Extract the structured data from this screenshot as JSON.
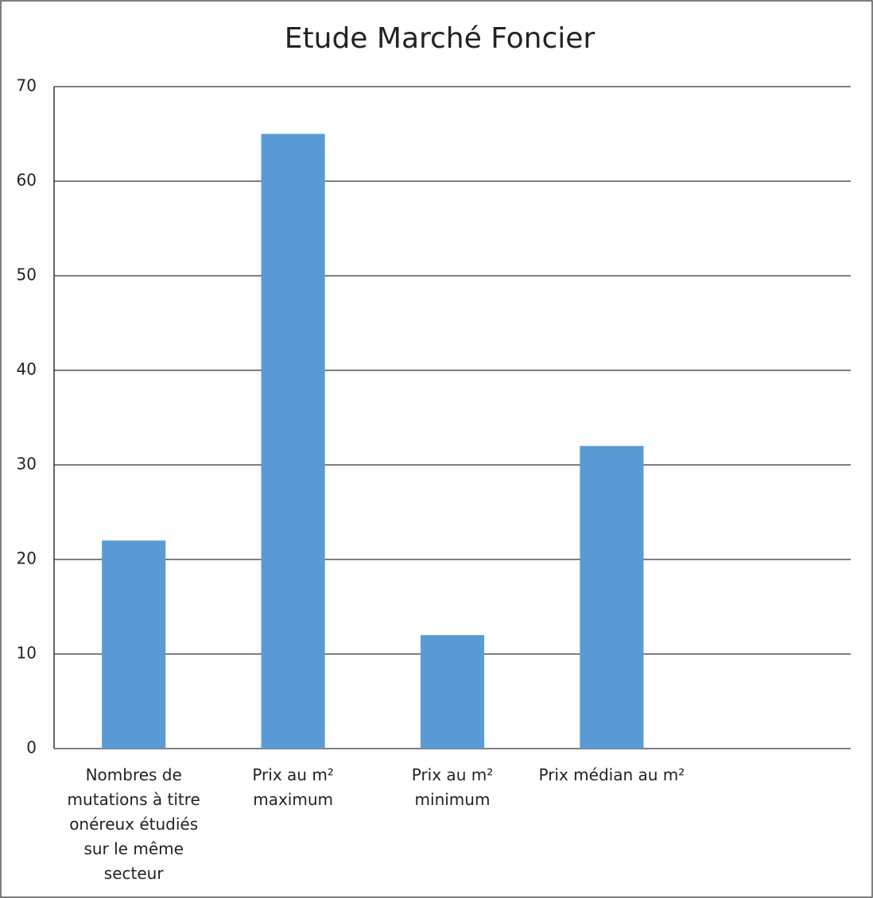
{
  "chart_data": {
    "type": "bar",
    "title": "Etude Marché Foncier",
    "categories": [
      "Nombres de mutations à titre onéreux étudiés sur le même secteur",
      "Prix au m² maximum",
      "Prix au m² minimum",
      "Prix médian au m²",
      null
    ],
    "values": [
      22,
      65,
      12,
      32,
      null
    ],
    "color": "#5b9bd5",
    "ylim": [
      0,
      70
    ],
    "yticks": [
      0,
      10,
      20,
      30,
      40,
      50,
      60,
      70
    ],
    "grid": true
  }
}
